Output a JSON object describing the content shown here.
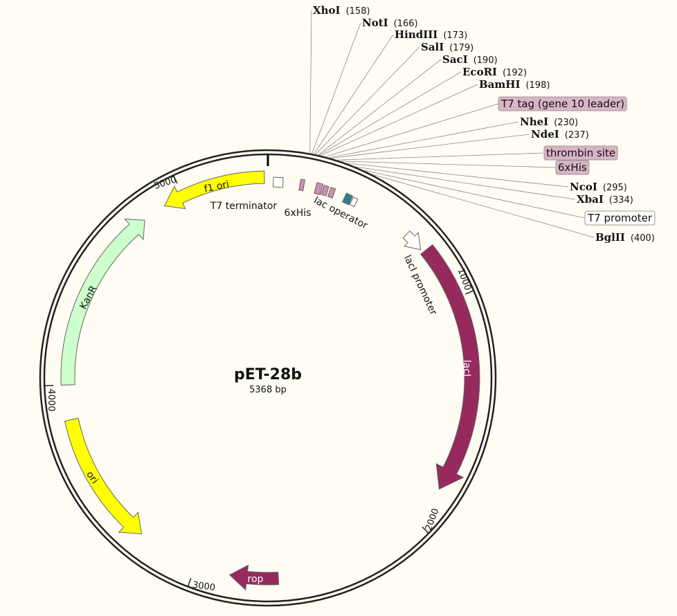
{
  "map": {
    "title": "pET-28b",
    "subtitle": "5368 bp",
    "ticks": [
      "1000",
      "2000",
      "3000",
      "4000",
      "5000"
    ],
    "sites": [
      {
        "name": "XhoI",
        "position": "(158)"
      },
      {
        "name": "NotI",
        "position": "(166)"
      },
      {
        "name": "HindIII",
        "position": "(173)"
      },
      {
        "name": "SalI",
        "position": "(179)"
      },
      {
        "name": "SacI",
        "position": "(190)"
      },
      {
        "name": "EcoRI",
        "position": "(192)"
      },
      {
        "name": "BamHI",
        "position": "(198)"
      },
      {
        "feature": "T7 tag (gene 10 leader)"
      },
      {
        "name": "NheI",
        "position": "(230)"
      },
      {
        "name": "NdeI",
        "position": "(237)"
      },
      {
        "feature": "thrombin site"
      },
      {
        "feature": "6xHis"
      },
      {
        "name": "NcoI",
        "position": "(295)"
      },
      {
        "name": "XbaI",
        "position": "(334)"
      },
      {
        "feature": "T7 promoter"
      },
      {
        "name": "BglII",
        "position": "(400)"
      }
    ],
    "features": [
      {
        "label": "f1 ori"
      },
      {
        "label": "KanR"
      },
      {
        "label": "ori"
      },
      {
        "label": "rop"
      },
      {
        "label": "lacI"
      },
      {
        "label": "lacI promoter"
      },
      {
        "label": "T7 terminator"
      },
      {
        "label": "6xHis"
      },
      {
        "label": "lac operator"
      }
    ]
  }
}
